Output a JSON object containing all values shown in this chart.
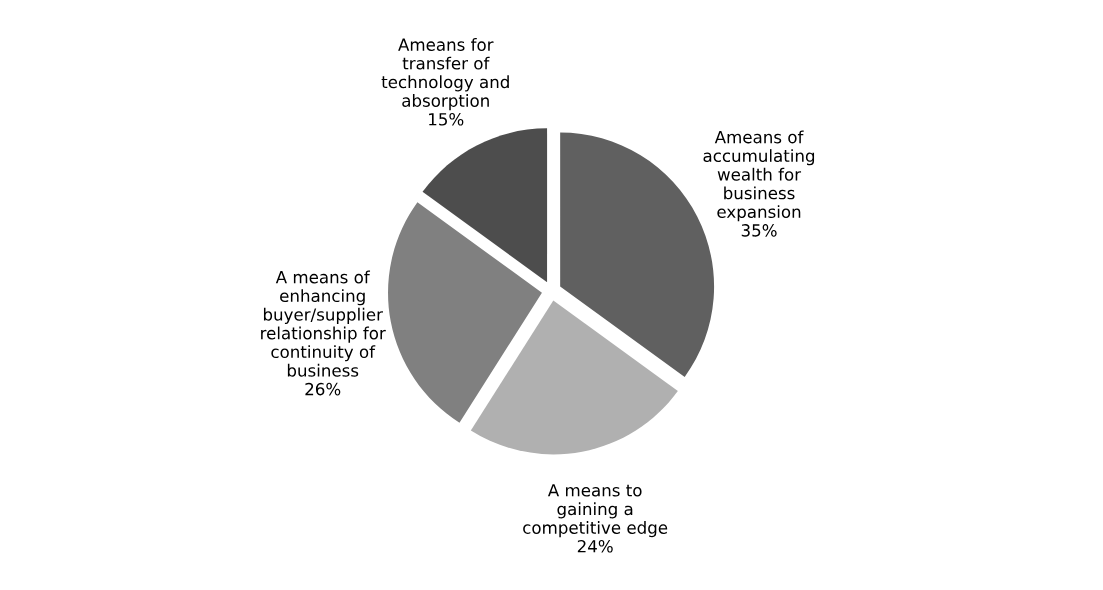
{
  "chart_data": {
    "type": "pie",
    "categories": [
      "Ameans of\naccumulating\nwealth for\nbusiness\nexpansion",
      "A means to\ngaining a\ncompetitive edge",
      "A means of\nenhancing\nbuyer/supplier\nrelationship for\ncontinuity of\nbusiness",
      "Ameans for\ntransfer of\ntechnology and\nabsorption"
    ],
    "values": [
      35,
      24,
      26,
      15
    ],
    "value_labels": [
      "35%",
      "24%",
      "26%",
      "15%"
    ],
    "colors": [
      "#606060",
      "#b0b0b0",
      "#808080",
      "#4d4d4d"
    ],
    "legend": false
  }
}
